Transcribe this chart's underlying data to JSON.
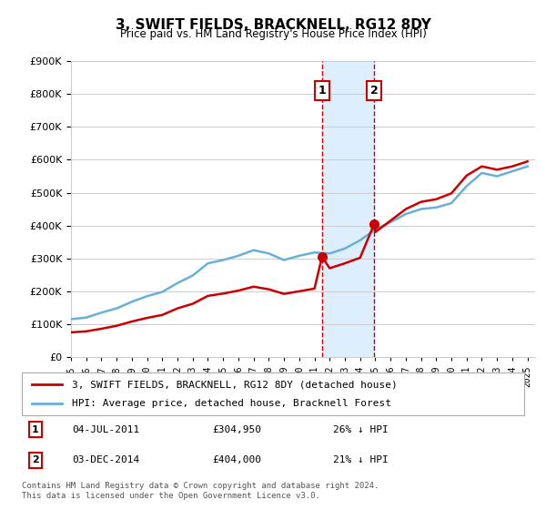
{
  "title": "3, SWIFT FIELDS, BRACKNELL, RG12 8DY",
  "subtitle": "Price paid vs. HM Land Registry's House Price Index (HPI)",
  "legend_line1": "3, SWIFT FIELDS, BRACKNELL, RG12 8DY (detached house)",
  "legend_line2": "HPI: Average price, detached house, Bracknell Forest",
  "annotation1_label": "1",
  "annotation1_date": "04-JUL-2011",
  "annotation1_price": "£304,950",
  "annotation1_hpi": "26% ↓ HPI",
  "annotation2_label": "2",
  "annotation2_date": "03-DEC-2014",
  "annotation2_price": "£404,000",
  "annotation2_hpi": "21% ↓ HPI",
  "footnote": "Contains HM Land Registry data © Crown copyright and database right 2024.\nThis data is licensed under the Open Government Licence v3.0.",
  "sale1_year": 2011.5,
  "sale1_price": 304950,
  "sale2_year": 2014.92,
  "sale2_price": 404000,
  "hpi_color": "#6ab0d4",
  "price_color": "#cc0000",
  "shade_color": "#ddeeff",
  "annotation_box_color": "#cc0000",
  "ylim_min": 0,
  "ylim_max": 900000,
  "hpi_data": {
    "years": [
      1995,
      1996,
      1997,
      1998,
      1999,
      2000,
      2001,
      2002,
      2003,
      2004,
      2005,
      2006,
      2007,
      2008,
      2009,
      2010,
      2011,
      2012,
      2013,
      2014,
      2015,
      2016,
      2017,
      2018,
      2019,
      2020,
      2021,
      2022,
      2023,
      2024,
      2025
    ],
    "values": [
      115000,
      120000,
      135000,
      148000,
      168000,
      185000,
      198000,
      225000,
      248000,
      285000,
      295000,
      308000,
      325000,
      315000,
      295000,
      308000,
      318000,
      315000,
      330000,
      355000,
      388000,
      410000,
      435000,
      450000,
      455000,
      468000,
      520000,
      560000,
      550000,
      565000,
      580000
    ]
  },
  "price_data": {
    "years": [
      1995,
      1996,
      1997,
      1998,
      1999,
      2000,
      2001,
      2002,
      2003,
      2004,
      2005,
      2006,
      2007,
      2008,
      2009,
      2010,
      2011,
      2011.5,
      2012,
      2013,
      2014,
      2014.92,
      2015,
      2016,
      2017,
      2018,
      2019,
      2020,
      2021,
      2022,
      2023,
      2024,
      2025
    ],
    "values": [
      75000,
      78000,
      86000,
      95000,
      108000,
      119000,
      128000,
      148000,
      162000,
      186000,
      193000,
      202000,
      214000,
      206000,
      192000,
      200000,
      208000,
      304950,
      270000,
      285000,
      302000,
      404000,
      380000,
      415000,
      450000,
      472000,
      480000,
      498000,
      552000,
      580000,
      570000,
      580000,
      595000
    ]
  }
}
